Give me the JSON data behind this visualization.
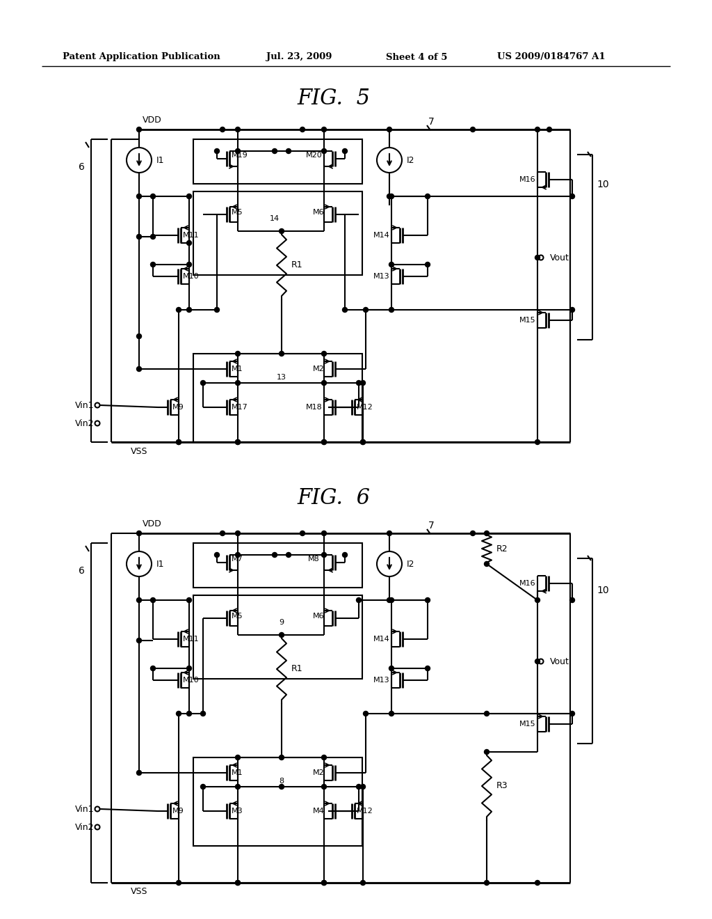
{
  "bg": "#ffffff",
  "lc": "#000000",
  "header1": "Patent Application Publication",
  "header2": "Jul. 23, 2009",
  "header3": "Sheet 4 of 5",
  "header4": "US 2009/0184767 A1",
  "fig5_title": "FIG.  5",
  "fig6_title": "FIG.  6"
}
